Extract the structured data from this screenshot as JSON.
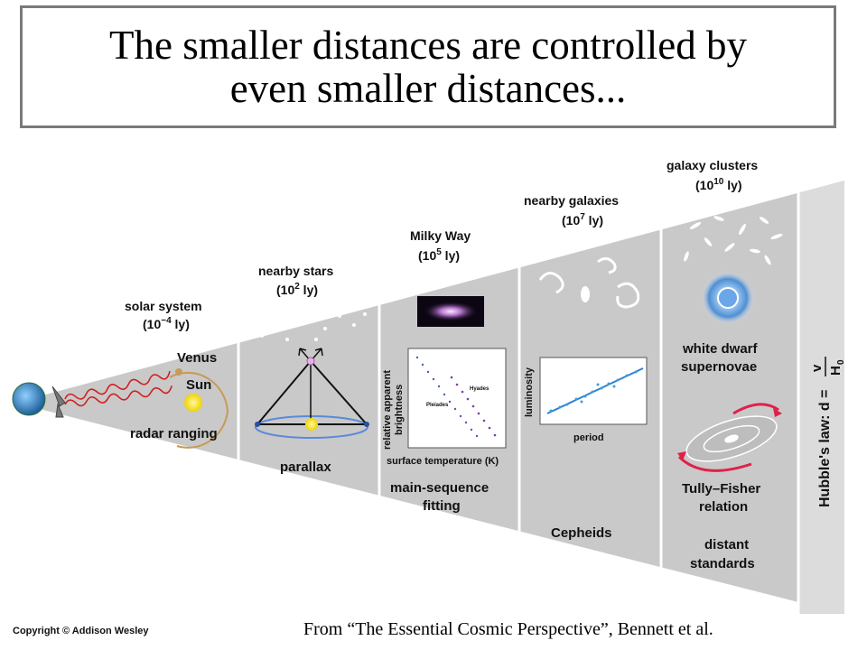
{
  "slide": {
    "title_line1": "The smaller distances are controlled by",
    "title_line2": "even smaller distances...",
    "copyright": "Copyright © Addison Wesley",
    "source": "From “The Essential Cosmic Perspective”, Bennett et al."
  },
  "ladder": {
    "solar_system": {
      "name": "solar system",
      "scale": "(10",
      "exp": "−4",
      "unit": " ly)",
      "venus": "Venus",
      "sun": "Sun",
      "method": "radar ranging"
    },
    "nearby_stars": {
      "name": "nearby stars",
      "scale": "(10",
      "exp": "2",
      "unit": " ly)",
      "method": "parallax"
    },
    "milky_way": {
      "name": "Milky Way",
      "scale": "(10",
      "exp": "5",
      "unit": " ly)",
      "ylabel_1": "relative apparent",
      "ylabel_2": "brightness",
      "xlabel": "surface temperature (K)",
      "cluster_a": "Pleiades",
      "cluster_b": "Hyades",
      "method_1": "main-sequence",
      "method_2": "fitting"
    },
    "nearby_galaxies": {
      "name": "nearby galaxies",
      "scale": "(10",
      "exp": "7",
      "unit": " ly)",
      "ylabel": "luminosity",
      "xlabel": "period",
      "method": "Cepheids"
    },
    "galaxy_clusters": {
      "name": "galaxy clusters",
      "scale": "(10",
      "exp": "10",
      "unit": " ly)",
      "method_1a": "white dwarf",
      "method_1b": "supernovae",
      "method_2a": "Tully–Fisher",
      "method_2b": "relation",
      "method_3a": "distant",
      "method_3b": "standards"
    },
    "hubble": {
      "text": "Hubble's law: d =",
      "numerator": "v",
      "denominator": "H",
      "subscript": "0"
    }
  }
}
